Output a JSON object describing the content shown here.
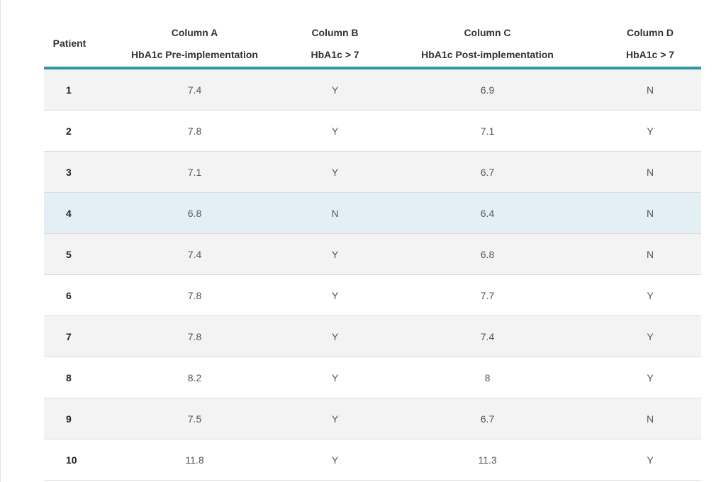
{
  "table": {
    "headers": {
      "patient": "Patient",
      "col_a": {
        "title": "Column A",
        "subtitle": "HbA1c Pre-implementation"
      },
      "col_b": {
        "title": "Column B",
        "subtitle": "HbA1c > 7"
      },
      "col_c": {
        "title": "Column C",
        "subtitle": "HbA1c Post-implementation"
      },
      "col_d": {
        "title": "Column D",
        "subtitle": "HbA1c > 7"
      }
    },
    "rows": [
      {
        "patient": "1",
        "a": "7.4",
        "b": "Y",
        "c": "6.9",
        "d": "N"
      },
      {
        "patient": "2",
        "a": "7.8",
        "b": "Y",
        "c": "7.1",
        "d": "Y"
      },
      {
        "patient": "3",
        "a": "7.1",
        "b": "Y",
        "c": "6.7",
        "d": "N"
      },
      {
        "patient": "4",
        "a": "6.8",
        "b": "N",
        "c": "6.4",
        "d": "N"
      },
      {
        "patient": "5",
        "a": "7.4",
        "b": "Y",
        "c": "6.8",
        "d": "N"
      },
      {
        "patient": "6",
        "a": "7.8",
        "b": "Y",
        "c": "7.7",
        "d": "Y"
      },
      {
        "patient": "7",
        "a": "7.8",
        "b": "Y",
        "c": "7.4",
        "d": "Y"
      },
      {
        "patient": "8",
        "a": "8.2",
        "b": "Y",
        "c": "8",
        "d": "Y"
      },
      {
        "patient": "9",
        "a": "7.5",
        "b": "Y",
        "c": "6.7",
        "d": "N"
      },
      {
        "patient": "10",
        "a": "11.8",
        "b": "Y",
        "c": "11.3",
        "d": "Y"
      }
    ],
    "highlighted_row": 3
  },
  "colors": {
    "header_rule": "#2e969e",
    "row_striped": "#f3f3f3",
    "row_highlight": "#e2f0f5"
  }
}
